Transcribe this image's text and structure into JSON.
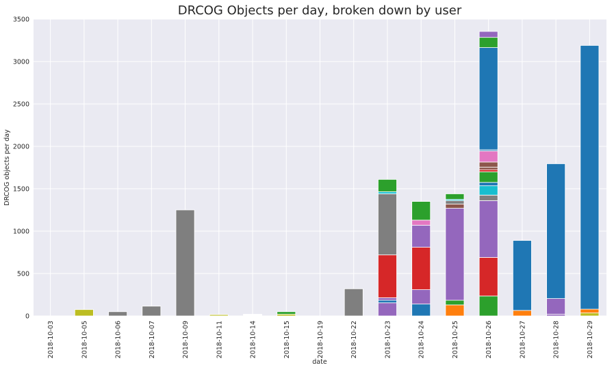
{
  "chart_data": {
    "type": "bar",
    "stacked": true,
    "title": "DRCOG Objects per day, broken down by user",
    "xlabel": "date",
    "ylabel": "DRCOG objects per day",
    "ylim": [
      0,
      3500
    ],
    "yticks": [
      0,
      500,
      1000,
      1500,
      2000,
      2500,
      3000,
      3500
    ],
    "grid": true,
    "background": "#eaeaf2",
    "categories": [
      "2018-10-03",
      "2018-10-05",
      "2018-10-06",
      "2018-10-07",
      "2018-10-09",
      "2018-10-11",
      "2018-10-14",
      "2018-10-15",
      "2018-10-19",
      "2018-10-22",
      "2018-10-23",
      "2018-10-24",
      "2018-10-25",
      "2018-10-26",
      "2018-10-27",
      "2018-10-28",
      "2018-10-29"
    ],
    "segments": [
      [],
      [
        {
          "value": 75,
          "color": "#bcbd22"
        }
      ],
      [
        {
          "value": 50,
          "color": "#7f7f7f"
        }
      ],
      [
        {
          "value": 115,
          "color": "#7f7f7f"
        }
      ],
      [
        {
          "value": 1250,
          "color": "#7f7f7f"
        }
      ],
      [
        {
          "value": 15,
          "color": "#bcbd22"
        }
      ],
      [
        {
          "value": 20,
          "color": "#ffffff"
        }
      ],
      [
        {
          "value": 20,
          "color": "#bcbd22"
        },
        {
          "value": 30,
          "color": "#2ca02c"
        }
      ],
      [],
      [
        {
          "value": 320,
          "color": "#7f7f7f"
        }
      ],
      [
        {
          "value": 155,
          "color": "#9467bd"
        },
        {
          "value": 30,
          "color": "#1f77b4"
        },
        {
          "value": 30,
          "color": "#9467bd"
        },
        {
          "value": 505,
          "color": "#d62728"
        },
        {
          "value": 720,
          "color": "#7f7f7f"
        },
        {
          "value": 25,
          "color": "#17becf"
        },
        {
          "value": 145,
          "color": "#2ca02c"
        }
      ],
      [
        {
          "value": 140,
          "color": "#1f77b4"
        },
        {
          "value": 170,
          "color": "#9467bd"
        },
        {
          "value": 500,
          "color": "#d62728"
        },
        {
          "value": 260,
          "color": "#9467bd"
        },
        {
          "value": 60,
          "color": "#e377c2"
        },
        {
          "value": 220,
          "color": "#2ca02c"
        }
      ],
      [
        {
          "value": 130,
          "color": "#ff7f0e"
        },
        {
          "value": 55,
          "color": "#2ca02c"
        },
        {
          "value": 1085,
          "color": "#9467bd"
        },
        {
          "value": 50,
          "color": "#8c564b"
        },
        {
          "value": 40,
          "color": "#7f7f7f"
        },
        {
          "value": 15,
          "color": "#17becf"
        },
        {
          "value": 65,
          "color": "#2ca02c"
        }
      ],
      [
        {
          "value": 235,
          "color": "#2ca02c"
        },
        {
          "value": 455,
          "color": "#d62728"
        },
        {
          "value": 670,
          "color": "#9467bd"
        },
        {
          "value": 65,
          "color": "#7f7f7f"
        },
        {
          "value": 110,
          "color": "#17becf"
        },
        {
          "value": 40,
          "color": "#1f77b4"
        },
        {
          "value": 125,
          "color": "#2ca02c"
        },
        {
          "value": 25,
          "color": "#d62728"
        },
        {
          "value": 30,
          "color": "#8c564b"
        },
        {
          "value": 60,
          "color": "#8c564b"
        },
        {
          "value": 130,
          "color": "#e377c2"
        },
        {
          "value": 15,
          "color": "#1f77b4"
        },
        {
          "value": 1205,
          "color": "#1f77b4"
        },
        {
          "value": 120,
          "color": "#2ca02c"
        },
        {
          "value": 70,
          "color": "#9467bd"
        }
      ],
      [
        {
          "value": 65,
          "color": "#ff7f0e"
        },
        {
          "value": 825,
          "color": "#1f77b4"
        }
      ],
      [
        {
          "value": 20,
          "color": "#9467bd"
        },
        {
          "value": 185,
          "color": "#9467bd"
        },
        {
          "value": 1590,
          "color": "#1f77b4"
        }
      ],
      [
        {
          "value": 35,
          "color": "#bcbd22"
        },
        {
          "value": 45,
          "color": "#ff7f0e"
        },
        {
          "value": 3110,
          "color": "#1f77b4"
        }
      ]
    ]
  }
}
